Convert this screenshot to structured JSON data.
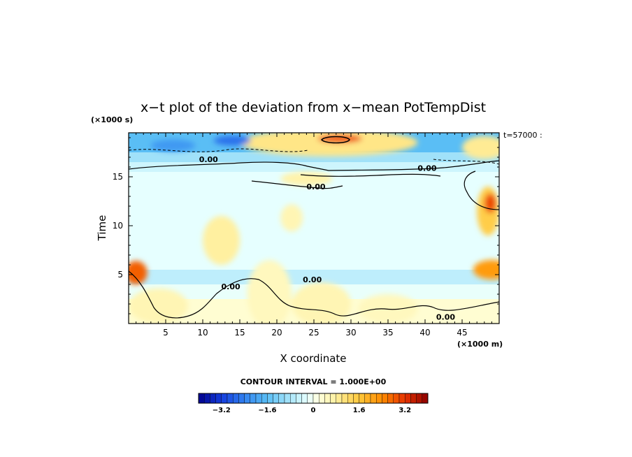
{
  "chart_data": {
    "type": "heatmap",
    "title": "x−t plot of the deviation from x−mean PotTempDist",
    "xlabel": "X coordinate",
    "ylabel": "Time",
    "x_unit": "(×1000 m)",
    "y_unit": "(×1000 s)",
    "xlim": [
      0,
      50
    ],
    "ylim": [
      0,
      19.5
    ],
    "x_ticks": [
      5,
      10,
      15,
      20,
      25,
      30,
      35,
      40,
      45
    ],
    "y_ticks": [
      5,
      10,
      15
    ],
    "time_label": "t=57000 :",
    "contour_interval_label": "CONTOUR INTERVAL = 1.000E+00",
    "contour_labels": [
      {
        "text": "0.00",
        "x": 9.5,
        "y": 16.5
      },
      {
        "text": "0.00",
        "x": 39.0,
        "y": 15.6
      },
      {
        "text": "0.00",
        "x": 24.0,
        "y": 13.7
      },
      {
        "text": "0.00",
        "x": 12.5,
        "y": 3.5
      },
      {
        "text": "0.00",
        "x": 23.5,
        "y": 4.2
      },
      {
        "text": "0.00",
        "x": 41.5,
        "y": 0.4
      }
    ],
    "colorbar": {
      "min": -4.0,
      "max": 4.0,
      "step": 0.2,
      "tick_values": [
        -3.2,
        -1.6,
        0,
        1.6,
        3.2
      ],
      "tick_labels": [
        "−3.2",
        "−1.6",
        "0",
        "1.6",
        "3.2"
      ]
    },
    "bands": [
      {
        "t0": 0.0,
        "t1": 2.5,
        "v": 0.3
      },
      {
        "t0": 2.5,
        "t1": 4.0,
        "v": -0.15
      },
      {
        "t0": 4.0,
        "t1": 5.5,
        "v": -0.6
      },
      {
        "t0": 5.5,
        "t1": 15.5,
        "v": -0.2
      },
      {
        "t0": 15.5,
        "t1": 16.5,
        "v": -0.45
      },
      {
        "t0": 16.5,
        "t1": 17.5,
        "v": -0.9
      },
      {
        "t0": 17.5,
        "t1": 19.5,
        "v": -1.6
      }
    ],
    "features": [
      {
        "x": 27.0,
        "y": 18.5,
        "rx": 12.0,
        "ry": 1.4,
        "v": 1.0
      },
      {
        "x": 28.5,
        "y": 18.9,
        "rx": 3.0,
        "ry": 0.45,
        "v": 2.9
      },
      {
        "x": 14.0,
        "y": 18.7,
        "rx": 2.5,
        "ry": 0.5,
        "v": -2.6
      },
      {
        "x": 6.0,
        "y": 18.2,
        "rx": 3.0,
        "ry": 0.6,
        "v": -2.1
      },
      {
        "x": 48.0,
        "y": 18.0,
        "rx": 3.0,
        "ry": 1.2,
        "v": 0.9
      },
      {
        "x": 24.0,
        "y": 14.8,
        "rx": 3.5,
        "ry": 0.7,
        "v": 0.7
      },
      {
        "x": 48.5,
        "y": 11.5,
        "rx": 1.5,
        "ry": 2.5,
        "v": 1.5
      },
      {
        "x": 48.8,
        "y": 12.3,
        "rx": 0.8,
        "ry": 1.0,
        "v": 3.0
      },
      {
        "x": 49.0,
        "y": 5.5,
        "rx": 2.5,
        "ry": 1.0,
        "v": 2.2
      },
      {
        "x": 1.0,
        "y": 5.2,
        "rx": 1.5,
        "ry": 1.2,
        "v": 2.8
      },
      {
        "x": 12.5,
        "y": 8.5,
        "rx": 2.5,
        "ry": 2.5,
        "v": 0.8
      },
      {
        "x": 22.0,
        "y": 10.8,
        "rx": 1.5,
        "ry": 1.4,
        "v": 0.6
      },
      {
        "x": 26.0,
        "y": 2.0,
        "rx": 4.0,
        "ry": 2.2,
        "v": 0.6
      },
      {
        "x": 4.0,
        "y": 1.8,
        "rx": 4.0,
        "ry": 1.8,
        "v": 0.6
      },
      {
        "x": 19.0,
        "y": 3.0,
        "rx": 3.0,
        "ry": 3.5,
        "v": 0.5
      },
      {
        "x": 35.0,
        "y": 1.5,
        "rx": 4.0,
        "ry": 1.5,
        "v": 0.5
      }
    ]
  }
}
